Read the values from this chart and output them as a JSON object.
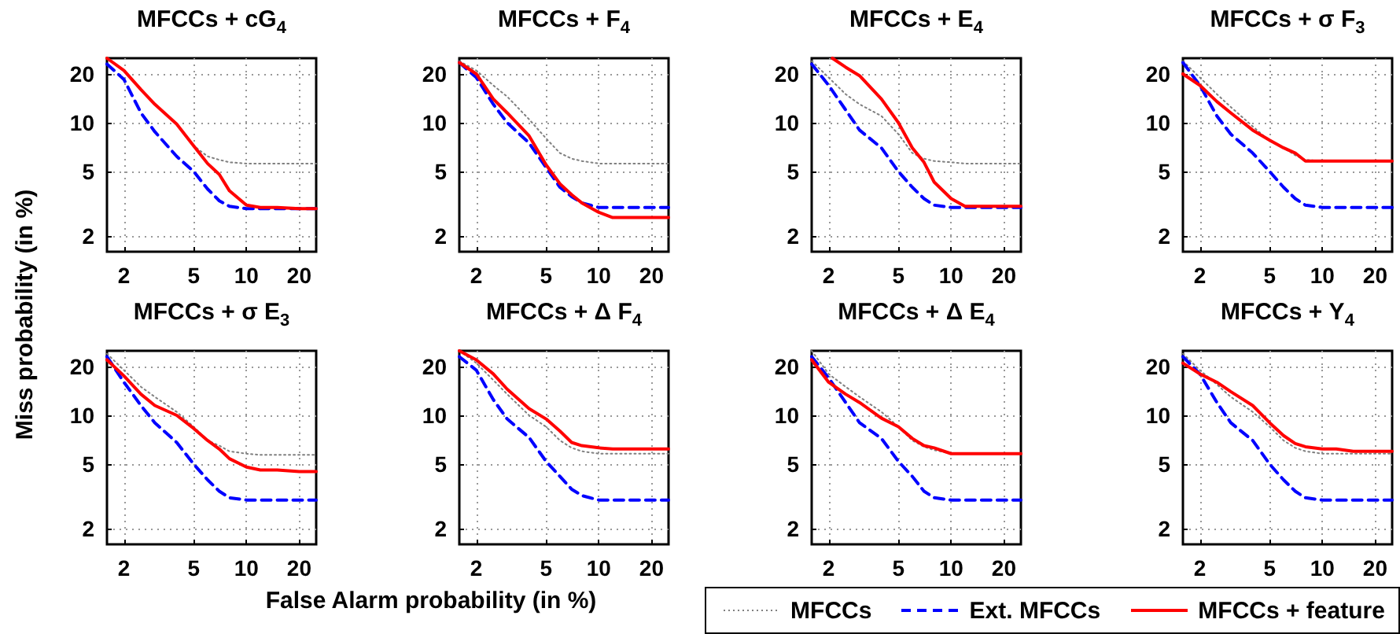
{
  "chart_data": [
    {
      "type": "line",
      "title": "MFCCs + cG$_{4}$",
      "ylabel": "Miss probability (in %)",
      "x": [
        1.6,
        2,
        2.5,
        3,
        4,
        5,
        6,
        7,
        8,
        10,
        12,
        15,
        20,
        25
      ],
      "xlim": [
        1.6,
        25
      ],
      "ylim": [
        1.6,
        25
      ],
      "xticks": [
        2,
        5,
        10,
        20
      ],
      "yticks": [
        2,
        5,
        10,
        20
      ],
      "log": "xy",
      "grid": true,
      "marker": "none",
      "legend": "bottom right",
      "series": [
        {
          "name": "MFCCs",
          "color": "#808080",
          "line_style": "dotted",
          "values": [
            25,
            21,
            16,
            13,
            9.8,
            7.2,
            6.2,
            5.9,
            5.7,
            5.6,
            5.6,
            5.6,
            5.6,
            5.6
          ]
        },
        {
          "name": "Ext. MFCCs",
          "color": "#0000ff",
          "line_style": "dashed",
          "values": [
            23,
            18.5,
            11.5,
            8.8,
            6.2,
            5,
            3.9,
            3.3,
            3.05,
            2.95,
            2.95,
            2.95,
            2.95,
            2.95
          ]
        },
        {
          "name": "MFCCs + feature",
          "color": "#ff0000",
          "line_style": "solid",
          "values": [
            25,
            21,
            16,
            13,
            9.8,
            7.2,
            5.6,
            4.8,
            3.8,
            3.1,
            3.0,
            3.0,
            2.95,
            2.95
          ]
        }
      ]
    },
    {
      "type": "line",
      "title": "MFCCs + F$_{4}$",
      "x": [
        1.6,
        2,
        2.5,
        3,
        4,
        5,
        6,
        7,
        8,
        10,
        12,
        15,
        20,
        25
      ],
      "xlim": [
        1.6,
        25
      ],
      "ylim": [
        1.6,
        25
      ],
      "xticks": [
        2,
        5,
        10,
        20
      ],
      "yticks": [
        2,
        5,
        10,
        20
      ],
      "log": "xy",
      "grid": true,
      "marker": "none",
      "series": [
        {
          "color": "#808080",
          "line_style": "dotted",
          "values": [
            24,
            21,
            17,
            14.5,
            10.5,
            8,
            6.5,
            6,
            5.8,
            5.6,
            5.6,
            5.6,
            5.6,
            5.6
          ]
        },
        {
          "color": "#0000ff",
          "line_style": "dashed",
          "values": [
            23.5,
            19,
            13,
            10,
            7.5,
            5.3,
            4,
            3.5,
            3.2,
            3.0,
            3.0,
            3.0,
            3.0,
            3.0
          ]
        },
        {
          "color": "#ff0000",
          "line_style": "solid",
          "values": [
            23.5,
            20,
            14,
            11.5,
            8.3,
            5.5,
            4.2,
            3.6,
            3.2,
            2.8,
            2.6,
            2.6,
            2.6,
            2.6
          ]
        }
      ]
    },
    {
      "type": "line",
      "title": "MFCCs + E$_{4}$",
      "x": [
        1.6,
        2,
        2.5,
        3,
        4,
        5,
        6,
        7,
        8,
        10,
        12,
        15,
        20,
        25
      ],
      "xlim": [
        1.6,
        25
      ],
      "ylim": [
        1.6,
        25
      ],
      "xticks": [
        2,
        5,
        10,
        20
      ],
      "yticks": [
        2,
        5,
        10,
        20
      ],
      "log": "xy",
      "grid": true,
      "marker": "none",
      "series": [
        {
          "color": "#808080",
          "line_style": "dotted",
          "values": [
            24,
            19,
            15,
            13,
            11,
            8.5,
            6.5,
            6,
            5.8,
            5.7,
            5.6,
            5.6,
            5.6,
            5.6
          ]
        },
        {
          "color": "#0000ff",
          "line_style": "dashed",
          "values": [
            23,
            17,
            12,
            9,
            7,
            5,
            4,
            3.4,
            3.1,
            3.0,
            3.0,
            3.0,
            3.0,
            3.0
          ]
        },
        {
          "color": "#ff0000",
          "line_style": "solid",
          "x": [
            2.1,
            2.5,
            3,
            4,
            5,
            6,
            7,
            8,
            10,
            12,
            15,
            20,
            25
          ],
          "values": [
            25,
            22,
            19.5,
            14,
            10,
            7,
            5.7,
            4.3,
            3.4,
            3.05,
            3.05,
            3.05,
            3.05
          ]
        }
      ]
    },
    {
      "type": "line",
      "title": "MFCCs + σ F$_{3}$",
      "x": [
        1.6,
        2,
        2.5,
        3,
        4,
        5,
        6,
        7,
        8,
        10,
        12,
        15,
        20,
        25
      ],
      "xlim": [
        1.6,
        25
      ],
      "ylim": [
        1.6,
        25
      ],
      "xticks": [
        2,
        5,
        10,
        20
      ],
      "yticks": [
        2,
        5,
        10,
        20
      ],
      "log": "xy",
      "grid": true,
      "marker": "none",
      "series": [
        {
          "color": "#808080",
          "line_style": "dotted",
          "values": [
            24,
            19,
            15,
            12.5,
            9.5,
            7.7,
            7,
            6.3,
            5.9,
            5.8,
            5.8,
            5.8,
            5.8,
            5.8
          ]
        },
        {
          "color": "#0000ff",
          "line_style": "dashed",
          "values": [
            23.5,
            17,
            11,
            8.5,
            6.5,
            5,
            4,
            3.4,
            3.1,
            3.0,
            3.0,
            3.0,
            3.0,
            3.0
          ]
        },
        {
          "color": "#ff0000",
          "line_style": "solid",
          "values": [
            20,
            17,
            13.5,
            11.5,
            9,
            7.8,
            7,
            6.5,
            5.8,
            5.8,
            5.8,
            5.8,
            5.8,
            5.8
          ]
        }
      ]
    },
    {
      "type": "line",
      "title": "MFCCs + σ E$_{3}$",
      "xlabel": "False Alarm probability (in %)",
      "x": [
        1.6,
        2,
        2.5,
        3,
        4,
        5,
        6,
        7,
        8,
        10,
        12,
        15,
        20,
        25
      ],
      "xlim": [
        1.6,
        25
      ],
      "ylim": [
        1.6,
        25
      ],
      "xticks": [
        2,
        5,
        10,
        20
      ],
      "yticks": [
        2,
        5,
        10,
        20
      ],
      "log": "xy",
      "grid": true,
      "marker": "none",
      "series": [
        {
          "color": "#808080",
          "line_style": "dotted",
          "values": [
            24,
            19,
            15,
            13,
            10.5,
            8.5,
            7,
            6.5,
            6,
            5.8,
            5.7,
            5.7,
            5.7,
            5.7
          ]
        },
        {
          "color": "#0000ff",
          "line_style": "dashed",
          "values": [
            23,
            16,
            11.5,
            9,
            6.8,
            5,
            4,
            3.4,
            3.1,
            3.0,
            3.0,
            3.0,
            3.0,
            3.0
          ]
        },
        {
          "color": "#ff0000",
          "line_style": "solid",
          "values": [
            22,
            17.5,
            13.5,
            11.5,
            10,
            8.3,
            7,
            6.2,
            5.4,
            4.8,
            4.6,
            4.6,
            4.5,
            4.5
          ]
        }
      ]
    },
    {
      "type": "line",
      "title": "MFCCs + Δ F$_{4}$",
      "x": [
        1.6,
        2,
        2.5,
        3,
        4,
        5,
        6,
        7,
        8,
        10,
        12,
        15,
        20,
        25
      ],
      "xlim": [
        1.6,
        25
      ],
      "ylim": [
        1.6,
        25
      ],
      "xticks": [
        2,
        5,
        10,
        20
      ],
      "yticks": [
        2,
        5,
        10,
        20
      ],
      "log": "xy",
      "grid": true,
      "marker": "none",
      "series": [
        {
          "color": "#808080",
          "line_style": "dotted",
          "values": [
            25,
            21,
            16.5,
            13.5,
            10,
            8.5,
            7,
            6.3,
            6,
            5.8,
            5.8,
            5.8,
            5.8,
            5.8
          ]
        },
        {
          "color": "#0000ff",
          "line_style": "dashed",
          "values": [
            23,
            19,
            12.5,
            9.5,
            7.3,
            5.2,
            4.2,
            3.5,
            3.2,
            3.0,
            3.0,
            3.0,
            3.0,
            3.0
          ]
        },
        {
          "color": "#ff0000",
          "line_style": "solid",
          "values": [
            25,
            22,
            18,
            14.5,
            11,
            9.5,
            8,
            6.8,
            6.5,
            6.3,
            6.2,
            6.2,
            6.2,
            6.2
          ]
        }
      ]
    },
    {
      "type": "line",
      "title": "MFCCs + Δ E$_{4}$",
      "x": [
        1.6,
        2,
        2.5,
        3,
        4,
        5,
        6,
        7,
        8,
        10,
        12,
        15,
        20,
        25
      ],
      "xlim": [
        1.6,
        25
      ],
      "ylim": [
        1.6,
        25
      ],
      "xticks": [
        2,
        5,
        10,
        20
      ],
      "yticks": [
        2,
        5,
        10,
        20
      ],
      "log": "xy",
      "grid": true,
      "marker": "none",
      "series": [
        {
          "color": "#808080",
          "line_style": "dotted",
          "values": [
            25,
            18,
            15,
            13,
            10.5,
            8.5,
            7,
            6.4,
            6.1,
            5.8,
            5.8,
            5.8,
            5.8,
            5.8
          ]
        },
        {
          "color": "#0000ff",
          "line_style": "dashed",
          "values": [
            23,
            17,
            12,
            9,
            7.2,
            5.2,
            4.2,
            3.4,
            3.1,
            3.0,
            3.0,
            3.0,
            3.0,
            3.0
          ]
        },
        {
          "color": "#ff0000",
          "line_style": "solid",
          "values": [
            22,
            16,
            13.5,
            12,
            9.6,
            8.5,
            7.2,
            6.5,
            6.3,
            5.8,
            5.8,
            5.8,
            5.8,
            5.8
          ]
        }
      ]
    },
    {
      "type": "line",
      "title": "MFCCs + Υ$_{4}$",
      "x": [
        1.6,
        2,
        2.5,
        3,
        4,
        5,
        6,
        7,
        8,
        10,
        12,
        15,
        20,
        25
      ],
      "xlim": [
        1.6,
        25
      ],
      "ylim": [
        1.6,
        25
      ],
      "xticks": [
        2,
        5,
        10,
        20
      ],
      "yticks": [
        2,
        5,
        10,
        20
      ],
      "log": "xy",
      "grid": true,
      "marker": "none",
      "series": [
        {
          "color": "#808080",
          "line_style": "dotted",
          "values": [
            24,
            19,
            15.5,
            13,
            10.5,
            8.5,
            7,
            6.3,
            6,
            5.8,
            5.8,
            5.8,
            5.8,
            5.8
          ]
        },
        {
          "color": "#0000ff",
          "line_style": "dashed",
          "values": [
            23,
            18,
            12,
            9,
            7,
            5,
            4,
            3.4,
            3.1,
            3.0,
            3.0,
            3.0,
            3.0,
            3.0
          ]
        },
        {
          "color": "#ff0000",
          "line_style": "solid",
          "values": [
            21,
            18,
            16,
            14,
            11.5,
            9,
            7.5,
            6.7,
            6.4,
            6.2,
            6.2,
            6.0,
            6.0,
            6.0
          ]
        }
      ]
    }
  ]
}
